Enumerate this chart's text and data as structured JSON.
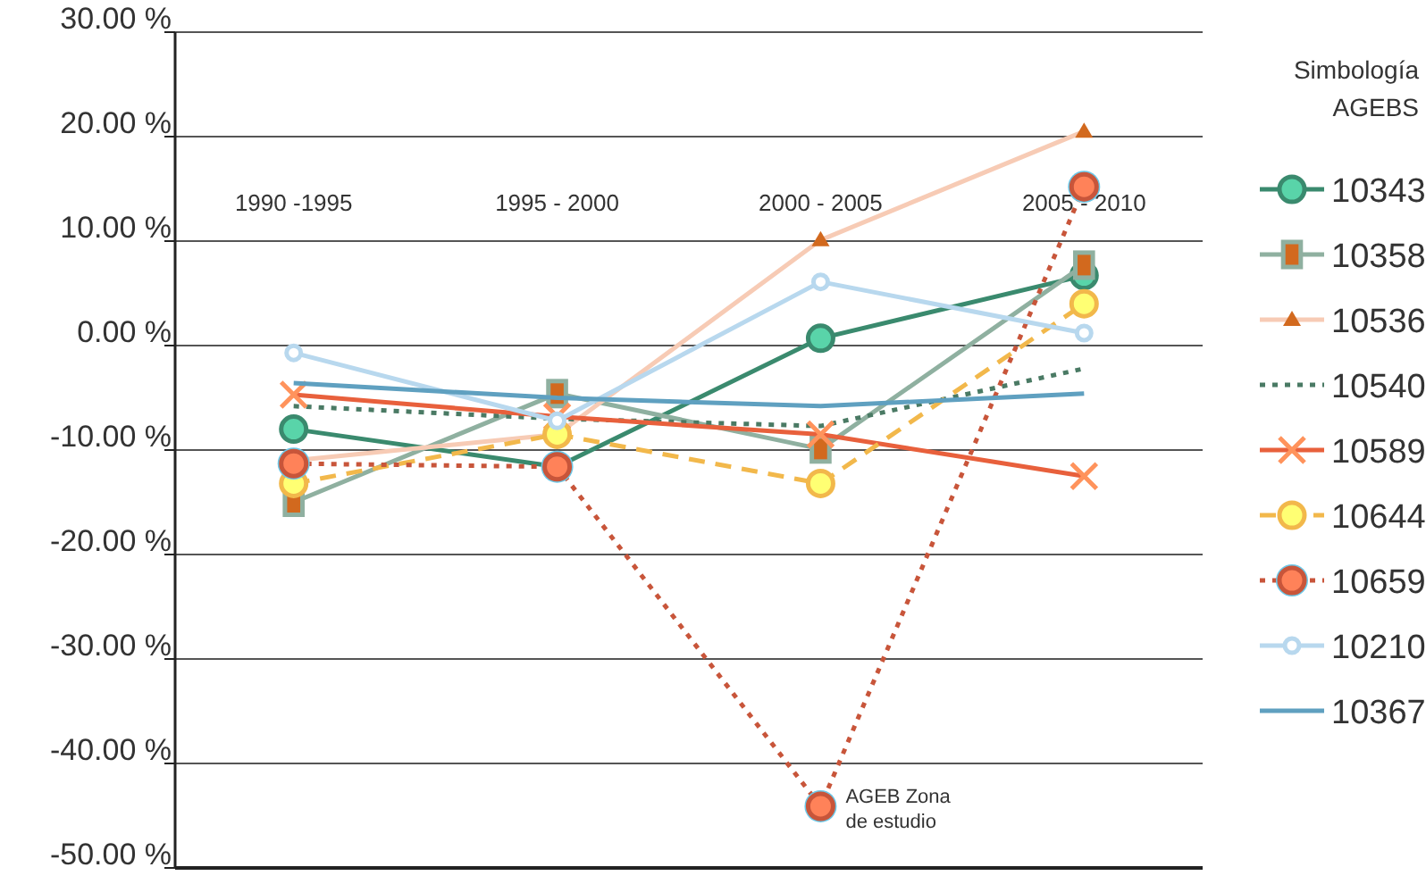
{
  "chart_data": {
    "type": "line",
    "legend_title": "Simbología\nAGEBS",
    "legend": "right",
    "grid": "y",
    "categories": [
      "1990 -1995",
      "1995 - 2000",
      "2000 - 2005",
      "2005 - 2010"
    ],
    "ylim": [
      -50,
      30
    ],
    "yticks": [
      {
        "value": -50,
        "label": "-50.00 %"
      },
      {
        "value": -40,
        "label": "-40.00 %"
      },
      {
        "value": -30,
        "label": "-30.00 %"
      },
      {
        "value": -20,
        "label": "-20.00 %"
      },
      {
        "value": -10,
        "label": "-10.00 %"
      },
      {
        "value": 0,
        "label": "0.00 %"
      },
      {
        "value": 10,
        "label": "10.00 %"
      },
      {
        "value": 20,
        "label": "20.00 %"
      },
      {
        "value": 30,
        "label": "30.00 %"
      }
    ],
    "annotations": [
      {
        "text": "AGEB Zona\nde estudio",
        "x": "2000 - 2005",
        "y": -44.1
      }
    ],
    "series": [
      {
        "name": "10343",
        "color": "#3a8a6e",
        "marker": "circle",
        "line_style": "solid",
        "values": [
          -8.0,
          -11.6,
          0.7,
          6.7
        ]
      },
      {
        "name": "10358",
        "color": "#8fb0a0",
        "marker": "square",
        "line_style": "solid",
        "values": [
          -15.0,
          -4.6,
          -9.9,
          7.7
        ]
      },
      {
        "name": "10536",
        "color": "#f7cbb5",
        "marker": "triangle",
        "line_style": "solid",
        "values": [
          -11.0,
          -8.5,
          10.1,
          20.5
        ]
      },
      {
        "name": "10540",
        "color": "#4a7a64",
        "marker": "none",
        "line_style": "dotted",
        "values": [
          -5.8,
          -7.0,
          -7.7,
          -2.2
        ]
      },
      {
        "name": "10589",
        "color": "#e8603c",
        "marker": "cross",
        "line_style": "solid",
        "values": [
          -4.7,
          -6.8,
          -8.5,
          -12.5
        ]
      },
      {
        "name": "10644",
        "color": "#f2b84b",
        "marker": "circle",
        "line_style": "dashed",
        "values": [
          -13.2,
          -8.5,
          -13.2,
          4.0
        ]
      },
      {
        "name": "10659",
        "color": "#c8553a",
        "marker": "circle",
        "line_style": "dotted",
        "values": [
          -11.3,
          -11.6,
          -44.1,
          15.2
        ]
      },
      {
        "name": "10210",
        "color": "#b8d8ee",
        "marker": "circle",
        "line_style": "solid",
        "values": [
          -0.7,
          -7.2,
          6.1,
          1.2
        ]
      },
      {
        "name": "10367",
        "color": "#5fa0c0",
        "marker": "none",
        "line_style": "solid",
        "values": [
          -3.6,
          -5.0,
          -5.8,
          -4.6
        ]
      }
    ]
  }
}
